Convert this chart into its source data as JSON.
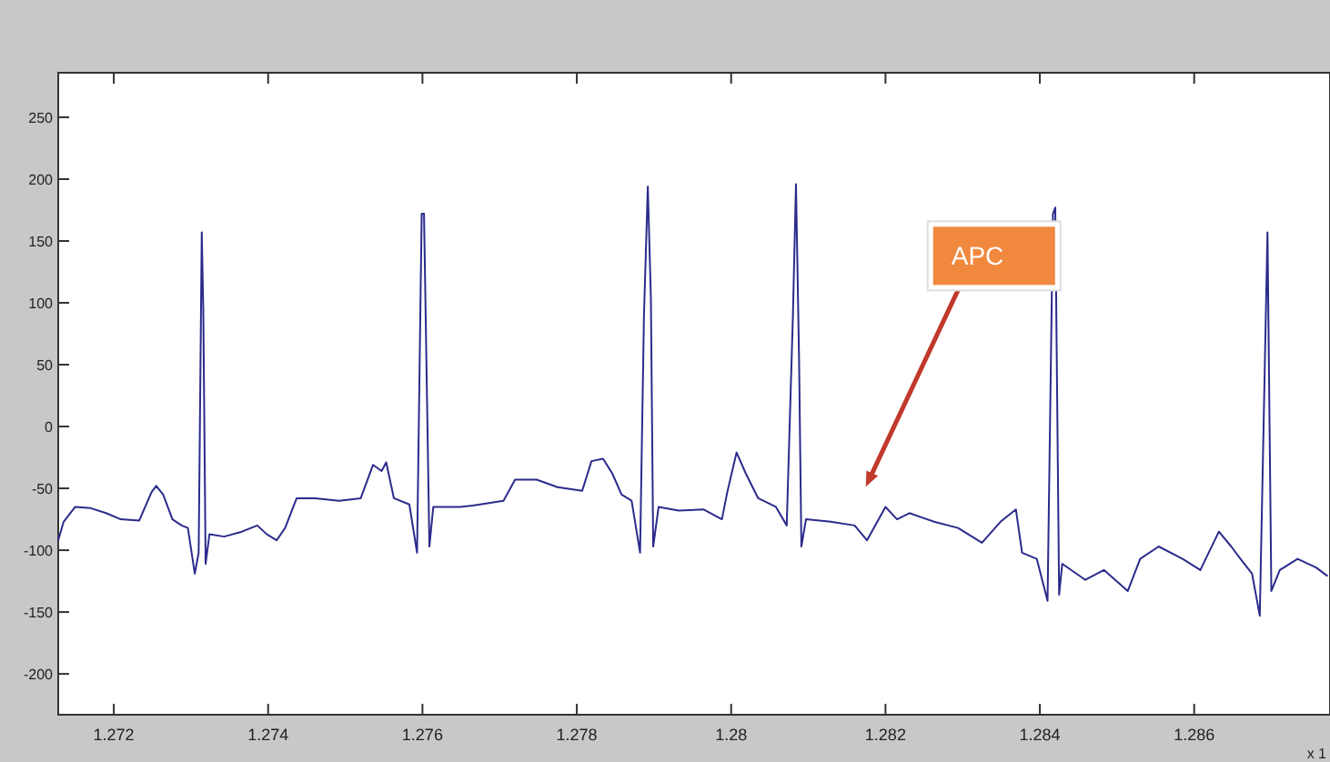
{
  "chart_data": {
    "type": "line",
    "x": [
      1.27128,
      1.27135,
      1.2715,
      1.2717,
      1.2719,
      1.27209,
      1.27233,
      1.27249,
      1.27255,
      1.27264,
      1.27276,
      1.27288,
      1.27296,
      1.27305,
      1.2731,
      1.27314,
      1.27316,
      1.27319,
      1.27324,
      1.27343,
      1.27366,
      1.27386,
      1.27398,
      1.27411,
      1.27422,
      1.27437,
      1.27461,
      1.27492,
      1.2752,
      1.27536,
      1.27547,
      1.27553,
      1.27563,
      1.27583,
      1.27593,
      1.27599,
      1.27602,
      1.27609,
      1.27614,
      1.27649,
      1.27665,
      1.27705,
      1.2772,
      1.27748,
      1.27775,
      1.27807,
      1.27819,
      1.27834,
      1.27846,
      1.27858,
      1.27871,
      1.27882,
      1.27887,
      1.27892,
      1.27896,
      1.27899,
      1.27906,
      1.27932,
      1.27964,
      1.27988,
      1.27995,
      1.28007,
      1.28019,
      1.28035,
      1.28058,
      1.28072,
      1.2808,
      1.28084,
      1.28088,
      1.28091,
      1.28097,
      1.28129,
      1.2816,
      1.28176,
      1.282,
      1.28215,
      1.28231,
      1.28263,
      1.28294,
      1.28325,
      1.28349,
      1.28369,
      1.28377,
      1.28396,
      1.2841,
      1.28417,
      1.2842,
      1.28425,
      1.28429,
      1.28459,
      1.28483,
      1.28514,
      1.2853,
      1.28554,
      1.28585,
      1.28608,
      1.28632,
      1.28648,
      1.2866,
      1.28675,
      1.28685,
      1.28695,
      1.287,
      1.28711,
      1.28734,
      1.28758,
      1.28773
    ],
    "series": [
      {
        "color": "#2b2b8c",
        "values": [
          -92,
          -77,
          -65,
          -66,
          -70,
          -75,
          -76,
          -53,
          -48,
          -55,
          -75,
          -80,
          -82,
          -119,
          -102,
          157,
          94,
          -111,
          -87,
          -89,
          -85,
          -80,
          -87,
          -92,
          -82,
          -58,
          -58,
          -60,
          -58,
          -31,
          -36,
          -29,
          -58,
          -63,
          -102,
          172,
          172,
          -97,
          -65,
          -65,
          -64,
          -60,
          -43,
          -43,
          -49,
          -52,
          -28,
          -26,
          -38,
          -55,
          -60,
          -102,
          89,
          194,
          104,
          -97,
          -65,
          -68,
          -67,
          -75,
          -53,
          -21,
          -38,
          -58,
          -65,
          -80,
          89,
          196,
          55,
          -97,
          -75,
          -77,
          -80,
          -92,
          -65,
          -75,
          -70,
          -77,
          -82,
          -94,
          -77,
          -67,
          -102,
          -107,
          -141,
          172,
          177,
          -136,
          -111,
          -124,
          -116,
          -133,
          -107,
          -97,
          -107,
          -116,
          -85,
          -97,
          -107,
          -119,
          -153,
          157,
          -133,
          -116,
          -107,
          -114,
          -121
        ]
      }
    ],
    "xlim": [
      1.27128,
      1.28776
    ],
    "ylim": [
      -233,
      286
    ],
    "xticks": [
      1.272,
      1.274,
      1.276,
      1.278,
      1.28,
      1.282,
      1.284,
      1.286
    ],
    "yticks": [
      -200,
      -150,
      -100,
      -50,
      0,
      50,
      100,
      150,
      200,
      250
    ],
    "grid": false,
    "line_style": "solid",
    "annotations": [
      "APC",
      "x 1"
    ]
  }
}
